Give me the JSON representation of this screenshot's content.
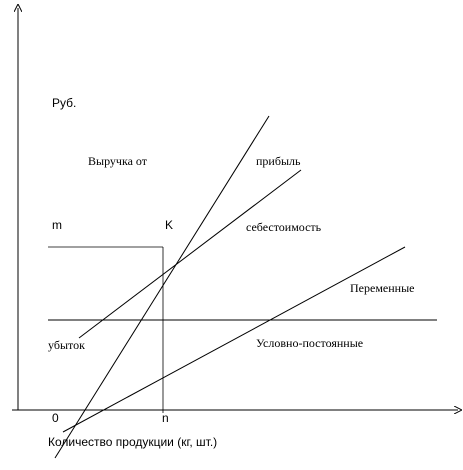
{
  "diagram": {
    "y_axis_label": "Руб.",
    "x_axis_label": "Количество продукции (кг, шт.)",
    "origin_label": "0",
    "point_label": "K",
    "y_mark_label": "m",
    "x_mark_label": "n",
    "revenue_label": "Выручка от",
    "profit_label": "прибыль",
    "cost_label": "себестоимость",
    "variable_label": "Переменные",
    "loss_label": "убыток",
    "fixed_label": "Условно-постоянные"
  }
}
